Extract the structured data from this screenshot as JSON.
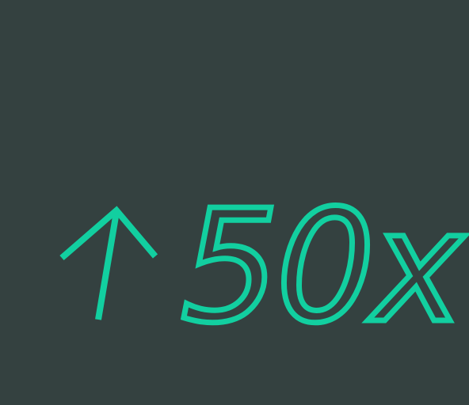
{
  "stat": {
    "icon": "arrow-up-icon",
    "value": "50x"
  },
  "colors": {
    "background": "#344140",
    "accent": "#12CFA0"
  }
}
